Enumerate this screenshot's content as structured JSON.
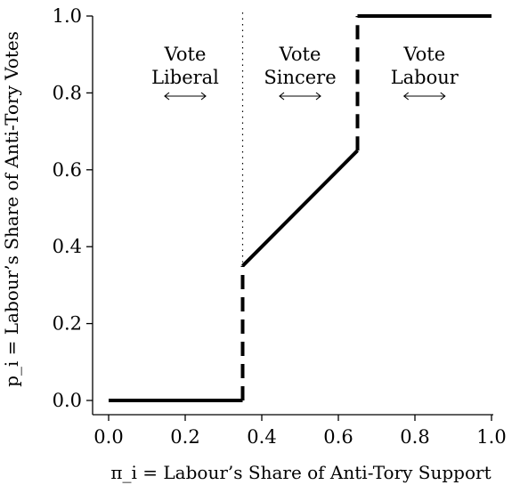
{
  "chart_data": {
    "type": "line",
    "xlabel": "π_i = Labour’s Share of Anti-Tory Support",
    "ylabel": "p_i = Labour’s Share of Anti-Tory Votes",
    "xlim": [
      0,
      1
    ],
    "ylim": [
      0,
      1
    ],
    "x_ticks": [
      "0.0",
      "0.2",
      "0.4",
      "0.6",
      "0.8",
      "1.0"
    ],
    "y_ticks": [
      "0.0",
      "0.2",
      "0.4",
      "0.6",
      "0.8",
      "1.0"
    ],
    "grid": false,
    "threshold_x": 0.35,
    "segments": [
      {
        "style": "solid",
        "points": [
          [
            0,
            0
          ],
          [
            0.35,
            0
          ]
        ]
      },
      {
        "style": "dashed",
        "points": [
          [
            0.35,
            0
          ],
          [
            0.35,
            0.35
          ]
        ]
      },
      {
        "style": "solid",
        "points": [
          [
            0.35,
            0.35
          ],
          [
            0.65,
            0.65
          ]
        ]
      },
      {
        "style": "dashed",
        "points": [
          [
            0.65,
            0.65
          ],
          [
            0.65,
            1.0
          ]
        ]
      },
      {
        "style": "solid",
        "points": [
          [
            0.65,
            1.0
          ],
          [
            1.0,
            1.0
          ]
        ]
      }
    ],
    "regions": [
      {
        "line1": "Vote",
        "line2": "Liberal",
        "center_x": 0.2,
        "arrow": "⟷"
      },
      {
        "line1": "Vote",
        "line2": "Sincere",
        "center_x": 0.5,
        "arrow": "⟷"
      },
      {
        "line1": "Vote",
        "line2": "Labour",
        "center_x": 0.825,
        "arrow": "⟷"
      }
    ]
  }
}
